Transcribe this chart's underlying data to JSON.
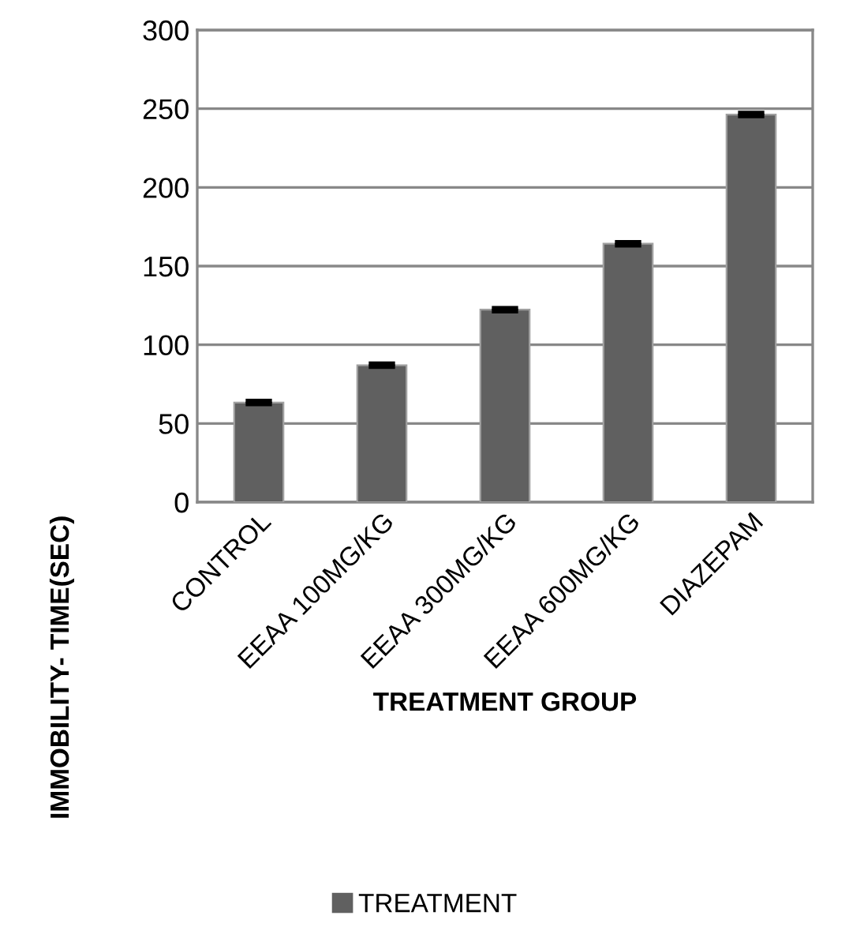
{
  "chart_data": {
    "type": "bar",
    "xlabel": "TREATMENT GROUP",
    "ylabel": "IMMOBILITY- TIME(SEC)",
    "categories": [
      "CONTROL",
      "EEAA 100MG/KG",
      "EEAA 300MG/KG",
      "EEAA 600MG/KG",
      "DIAZEPAM"
    ],
    "series": [
      {
        "name": "TREATMENT",
        "color": "#606060",
        "values": [
          63.3,
          87,
          122.3,
          164.2,
          246.3
        ],
        "errors": [
          1,
          1,
          1,
          1,
          1
        ]
      }
    ],
    "ylim": [
      0,
      300
    ],
    "yticks": [
      0,
      50,
      100,
      150,
      200,
      250,
      300
    ],
    "grid": "y",
    "legend": "bottom"
  }
}
